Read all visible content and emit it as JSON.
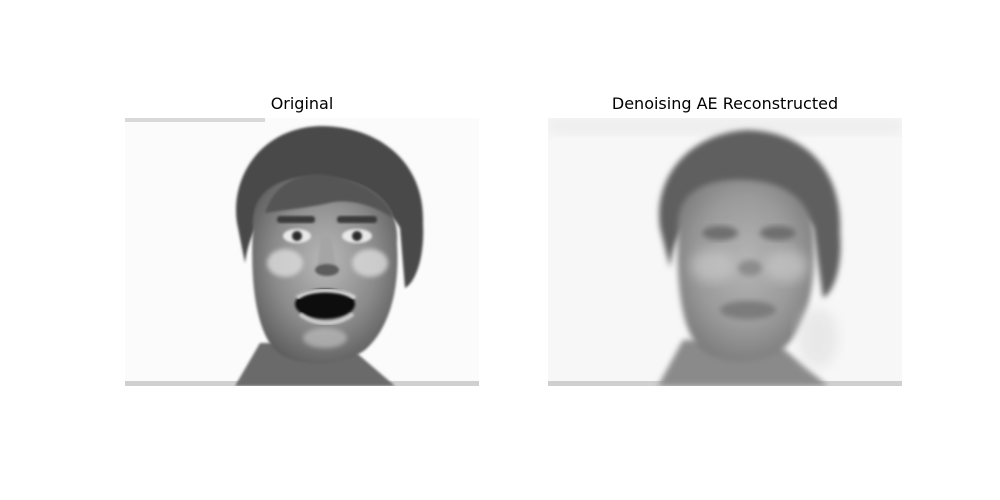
{
  "panels": [
    {
      "title": "Original"
    },
    {
      "title": "Denoising AE Reconstructed"
    }
  ]
}
